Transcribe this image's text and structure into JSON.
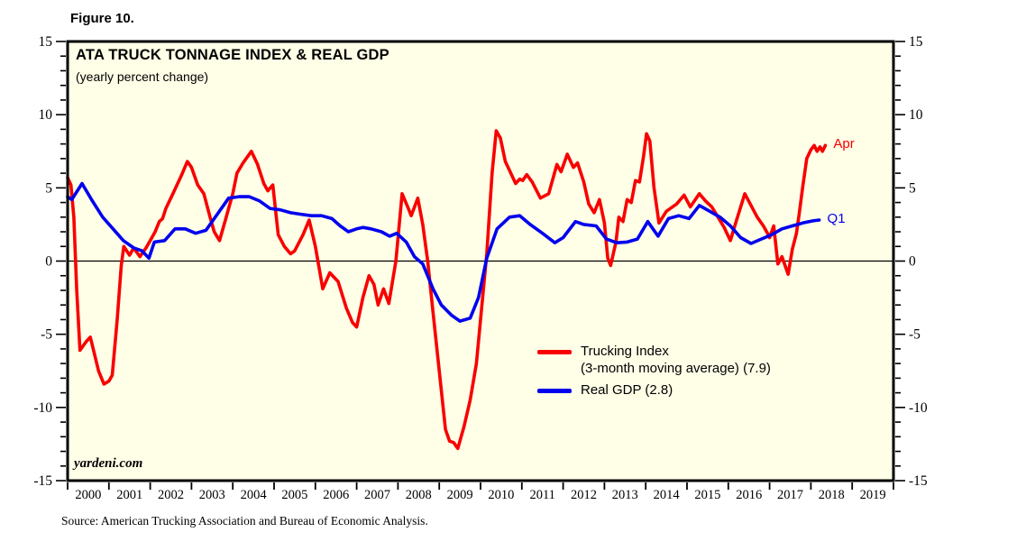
{
  "figure_label": "Figure 10.",
  "chart": {
    "title": "ATA TRUCK TONNAGE INDEX & REAL GDP",
    "subtitle": "(yearly percent change)",
    "watermark": "yardeni.com",
    "end_labels": {
      "trucking": "Apr",
      "gdp": "Q1"
    }
  },
  "legend": {
    "trucking_label": "Trucking Index",
    "trucking_sublabel": "(3-month moving average) (7.9)",
    "gdp_label": "Real GDP (2.8)"
  },
  "source": "Source: American Trucking Association and Bureau of Economic Analysis.",
  "colors": {
    "trucking": "#f80000",
    "gdp": "#0000ee",
    "plot_background": "#fffee7",
    "frame": "#000000"
  },
  "chart_data": {
    "type": "line",
    "title": "ATA TRUCK TONNAGE INDEX & REAL GDP",
    "subtitle": "(yearly percent change)",
    "xlabel": "",
    "ylabel": "yearly percent change",
    "x_range": [
      2000,
      2020
    ],
    "ylim": [
      -15,
      15
    ],
    "y_ticks": [
      15,
      10,
      5,
      0,
      -5,
      -10,
      -15
    ],
    "y_minor_step": 1,
    "x_tick_years": [
      2000,
      2001,
      2002,
      2003,
      2004,
      2005,
      2006,
      2007,
      2008,
      2009,
      2010,
      2011,
      2012,
      2013,
      2014,
      2015,
      2016,
      2017,
      2018,
      2019
    ],
    "grid": "zero-line-only",
    "legend_position": "inside-lower-middle",
    "series": [
      {
        "name": "Trucking Index (3-month moving average)",
        "color": "#f80000",
        "end_label": "Apr",
        "last_value": 7.9,
        "points": [
          [
            2000.0,
            5.7
          ],
          [
            2000.08,
            5.2
          ],
          [
            2000.15,
            3.0
          ],
          [
            2000.22,
            -2.0
          ],
          [
            2000.3,
            -6.1
          ],
          [
            2000.45,
            -5.5
          ],
          [
            2000.55,
            -5.2
          ],
          [
            2000.62,
            -6.0
          ],
          [
            2000.75,
            -7.5
          ],
          [
            2000.88,
            -8.4
          ],
          [
            2001.0,
            -8.2
          ],
          [
            2001.08,
            -7.8
          ],
          [
            2001.2,
            -4.0
          ],
          [
            2001.3,
            -0.3
          ],
          [
            2001.36,
            1.0
          ],
          [
            2001.5,
            0.4
          ],
          [
            2001.6,
            0.9
          ],
          [
            2001.75,
            0.3
          ],
          [
            2001.9,
            0.9
          ],
          [
            2002.0,
            1.4
          ],
          [
            2002.12,
            2.0
          ],
          [
            2002.22,
            2.7
          ],
          [
            2002.3,
            2.9
          ],
          [
            2002.38,
            3.6
          ],
          [
            2002.55,
            4.6
          ],
          [
            2002.75,
            5.8
          ],
          [
            2002.9,
            6.8
          ],
          [
            2003.0,
            6.4
          ],
          [
            2003.15,
            5.2
          ],
          [
            2003.3,
            4.6
          ],
          [
            2003.45,
            3.0
          ],
          [
            2003.55,
            2.0
          ],
          [
            2003.68,
            1.4
          ],
          [
            2003.82,
            2.8
          ],
          [
            2004.0,
            4.6
          ],
          [
            2004.1,
            6.0
          ],
          [
            2004.25,
            6.7
          ],
          [
            2004.45,
            7.5
          ],
          [
            2004.6,
            6.6
          ],
          [
            2004.75,
            5.3
          ],
          [
            2004.85,
            4.8
          ],
          [
            2004.97,
            5.2
          ],
          [
            2005.1,
            1.8
          ],
          [
            2005.25,
            1.0
          ],
          [
            2005.4,
            0.5
          ],
          [
            2005.5,
            0.7
          ],
          [
            2005.7,
            1.8
          ],
          [
            2005.85,
            2.8
          ],
          [
            2006.0,
            1.0
          ],
          [
            2006.18,
            -1.9
          ],
          [
            2006.35,
            -0.8
          ],
          [
            2006.55,
            -1.4
          ],
          [
            2006.75,
            -3.2
          ],
          [
            2006.9,
            -4.2
          ],
          [
            2007.0,
            -4.5
          ],
          [
            2007.15,
            -2.5
          ],
          [
            2007.3,
            -1.0
          ],
          [
            2007.42,
            -1.6
          ],
          [
            2007.52,
            -3.0
          ],
          [
            2007.65,
            -1.9
          ],
          [
            2007.78,
            -2.9
          ],
          [
            2007.95,
            0.0
          ],
          [
            2008.1,
            4.6
          ],
          [
            2008.25,
            3.6
          ],
          [
            2008.32,
            3.1
          ],
          [
            2008.48,
            4.3
          ],
          [
            2008.6,
            2.5
          ],
          [
            2008.72,
            0.0
          ],
          [
            2008.85,
            -3.5
          ],
          [
            2009.0,
            -7.5
          ],
          [
            2009.15,
            -11.5
          ],
          [
            2009.25,
            -12.3
          ],
          [
            2009.35,
            -12.4
          ],
          [
            2009.45,
            -12.8
          ],
          [
            2009.6,
            -11.3
          ],
          [
            2009.75,
            -9.5
          ],
          [
            2009.9,
            -7.0
          ],
          [
            2010.0,
            -4.0
          ],
          [
            2010.15,
            0.5
          ],
          [
            2010.28,
            6.0
          ],
          [
            2010.38,
            8.9
          ],
          [
            2010.48,
            8.4
          ],
          [
            2010.6,
            6.8
          ],
          [
            2010.7,
            6.2
          ],
          [
            2010.85,
            5.3
          ],
          [
            2010.95,
            5.6
          ],
          [
            2011.02,
            5.5
          ],
          [
            2011.12,
            5.9
          ],
          [
            2011.25,
            5.4
          ],
          [
            2011.45,
            4.3
          ],
          [
            2011.65,
            4.6
          ],
          [
            2011.85,
            6.6
          ],
          [
            2011.95,
            6.1
          ],
          [
            2012.1,
            7.3
          ],
          [
            2012.25,
            6.4
          ],
          [
            2012.35,
            6.7
          ],
          [
            2012.5,
            5.4
          ],
          [
            2012.62,
            3.9
          ],
          [
            2012.75,
            3.3
          ],
          [
            2012.88,
            4.2
          ],
          [
            2013.0,
            2.6
          ],
          [
            2013.08,
            0.2
          ],
          [
            2013.15,
            -0.3
          ],
          [
            2013.28,
            1.3
          ],
          [
            2013.35,
            3.0
          ],
          [
            2013.45,
            2.7
          ],
          [
            2013.55,
            4.2
          ],
          [
            2013.65,
            4.0
          ],
          [
            2013.75,
            5.5
          ],
          [
            2013.85,
            5.4
          ],
          [
            2013.95,
            7.2
          ],
          [
            2014.02,
            8.7
          ],
          [
            2014.1,
            8.2
          ],
          [
            2014.2,
            5.0
          ],
          [
            2014.32,
            2.6
          ],
          [
            2014.5,
            3.4
          ],
          [
            2014.75,
            3.9
          ],
          [
            2014.93,
            4.5
          ],
          [
            2015.08,
            3.7
          ],
          [
            2015.3,
            4.6
          ],
          [
            2015.45,
            4.1
          ],
          [
            2015.6,
            3.7
          ],
          [
            2015.75,
            3.0
          ],
          [
            2015.9,
            2.3
          ],
          [
            2016.05,
            1.4
          ],
          [
            2016.2,
            2.8
          ],
          [
            2016.4,
            4.6
          ],
          [
            2016.55,
            3.8
          ],
          [
            2016.7,
            3.0
          ],
          [
            2016.85,
            2.4
          ],
          [
            2016.95,
            1.9
          ],
          [
            2017.0,
            1.6
          ],
          [
            2017.1,
            2.4
          ],
          [
            2017.2,
            -0.2
          ],
          [
            2017.3,
            0.3
          ],
          [
            2017.45,
            -0.9
          ],
          [
            2017.55,
            0.8
          ],
          [
            2017.65,
            1.9
          ],
          [
            2017.72,
            3.3
          ],
          [
            2017.8,
            5.0
          ],
          [
            2017.9,
            7.0
          ],
          [
            2018.0,
            7.6
          ],
          [
            2018.08,
            7.9
          ],
          [
            2018.15,
            7.5
          ],
          [
            2018.22,
            7.8
          ],
          [
            2018.28,
            7.5
          ],
          [
            2018.35,
            7.9
          ]
        ]
      },
      {
        "name": "Real GDP",
        "color": "#0000ee",
        "end_label": "Q1",
        "last_value": 2.8,
        "points": [
          [
            2000.0,
            4.4
          ],
          [
            2000.1,
            4.2
          ],
          [
            2000.35,
            5.3
          ],
          [
            2000.6,
            4.1
          ],
          [
            2000.85,
            3.0
          ],
          [
            2001.1,
            2.2
          ],
          [
            2001.35,
            1.4
          ],
          [
            2001.6,
            0.9
          ],
          [
            2001.8,
            0.7
          ],
          [
            2001.97,
            0.2
          ],
          [
            2002.1,
            1.3
          ],
          [
            2002.35,
            1.4
          ],
          [
            2002.6,
            2.2
          ],
          [
            2002.85,
            2.2
          ],
          [
            2003.1,
            1.9
          ],
          [
            2003.35,
            2.1
          ],
          [
            2003.6,
            3.1
          ],
          [
            2003.9,
            4.3
          ],
          [
            2004.15,
            4.4
          ],
          [
            2004.4,
            4.4
          ],
          [
            2004.65,
            4.1
          ],
          [
            2004.9,
            3.6
          ],
          [
            2005.15,
            3.5
          ],
          [
            2005.4,
            3.3
          ],
          [
            2005.65,
            3.2
          ],
          [
            2005.9,
            3.1
          ],
          [
            2006.15,
            3.1
          ],
          [
            2006.4,
            2.9
          ],
          [
            2006.6,
            2.4
          ],
          [
            2006.8,
            2.0
          ],
          [
            2007.0,
            2.2
          ],
          [
            2007.15,
            2.3
          ],
          [
            2007.35,
            2.2
          ],
          [
            2007.6,
            2.0
          ],
          [
            2007.8,
            1.7
          ],
          [
            2007.97,
            1.9
          ],
          [
            2008.2,
            1.3
          ],
          [
            2008.4,
            0.3
          ],
          [
            2008.6,
            -0.2
          ],
          [
            2008.85,
            -1.9
          ],
          [
            2009.05,
            -3.0
          ],
          [
            2009.3,
            -3.7
          ],
          [
            2009.5,
            -4.1
          ],
          [
            2009.75,
            -3.9
          ],
          [
            2009.95,
            -2.5
          ],
          [
            2010.15,
            0.2
          ],
          [
            2010.4,
            2.2
          ],
          [
            2010.7,
            3.0
          ],
          [
            2010.95,
            3.1
          ],
          [
            2011.2,
            2.5
          ],
          [
            2011.5,
            1.9
          ],
          [
            2011.8,
            1.25
          ],
          [
            2012.0,
            1.6
          ],
          [
            2012.3,
            2.7
          ],
          [
            2012.5,
            2.5
          ],
          [
            2012.8,
            2.4
          ],
          [
            2013.05,
            1.5
          ],
          [
            2013.3,
            1.25
          ],
          [
            2013.55,
            1.3
          ],
          [
            2013.8,
            1.5
          ],
          [
            2014.05,
            2.7
          ],
          [
            2014.3,
            1.7
          ],
          [
            2014.55,
            2.9
          ],
          [
            2014.8,
            3.1
          ],
          [
            2015.05,
            2.9
          ],
          [
            2015.3,
            3.8
          ],
          [
            2015.55,
            3.4
          ],
          [
            2015.8,
            3.0
          ],
          [
            2016.05,
            2.4
          ],
          [
            2016.3,
            1.6
          ],
          [
            2016.55,
            1.2
          ],
          [
            2016.8,
            1.5
          ],
          [
            2017.05,
            1.8
          ],
          [
            2017.3,
            2.2
          ],
          [
            2017.55,
            2.4
          ],
          [
            2017.8,
            2.6
          ],
          [
            2018.05,
            2.75
          ],
          [
            2018.2,
            2.8
          ]
        ]
      }
    ]
  }
}
